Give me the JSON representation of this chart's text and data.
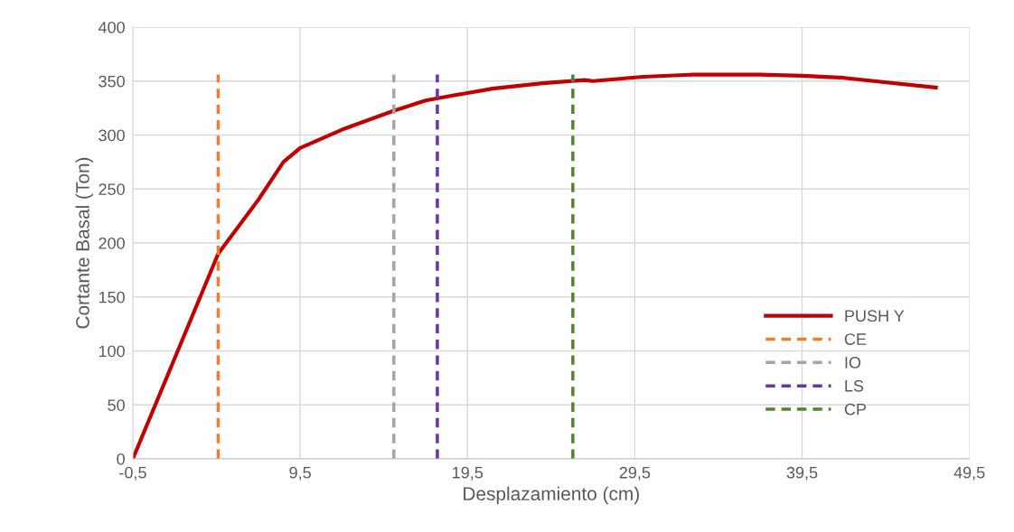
{
  "chart_data": {
    "type": "line",
    "xlabel": "Desplazamiento (cm)",
    "ylabel": "Cortante Basal (Ton)",
    "xlim": [
      -0.5,
      49.5
    ],
    "xticks": [
      {
        "value": -0.5,
        "label": "-0,5"
      },
      {
        "value": 9.5,
        "label": "9,5"
      },
      {
        "value": 19.5,
        "label": "19,5"
      },
      {
        "value": 29.5,
        "label": "29,5"
      },
      {
        "value": 39.5,
        "label": "39,5"
      },
      {
        "value": 49.5,
        "label": "49,5"
      }
    ],
    "ylim": [
      0,
      400
    ],
    "yticks": [
      0,
      50,
      100,
      150,
      200,
      250,
      300,
      350,
      400
    ],
    "grid": true,
    "legend": "bottom right",
    "marker": "none",
    "series": [
      {
        "name": "PUSH Y",
        "color": "#c00000",
        "line_style": "solid",
        "x": [
          -0.5,
          4.6,
          7,
          8.5,
          9.5,
          12,
          15,
          17,
          19.5,
          21,
          24,
          26.5,
          27,
          30,
          33,
          37,
          39.5,
          42,
          47.5
        ],
        "values": [
          0,
          190,
          240,
          275,
          288,
          305,
          322,
          332,
          339,
          343,
          348,
          351,
          350,
          354,
          356,
          356,
          355,
          353,
          344
        ]
      },
      {
        "name": "CE",
        "color": "#ed7d31",
        "line_style": "dashed",
        "x": [
          4.6,
          4.6
        ],
        "values": [
          0,
          356
        ]
      },
      {
        "name": "IO",
        "color": "#a5a5a5",
        "line_style": "dashed",
        "x": [
          15.1,
          15.1
        ],
        "values": [
          0,
          356
        ]
      },
      {
        "name": "LS",
        "color": "#7030a0",
        "line_style": "dashed",
        "x": [
          17.7,
          17.7
        ],
        "values": [
          0,
          356
        ]
      },
      {
        "name": "CP",
        "color": "#548235",
        "line_style": "dashed",
        "x": [
          25.8,
          25.8
        ],
        "values": [
          0,
          356
        ]
      }
    ]
  }
}
